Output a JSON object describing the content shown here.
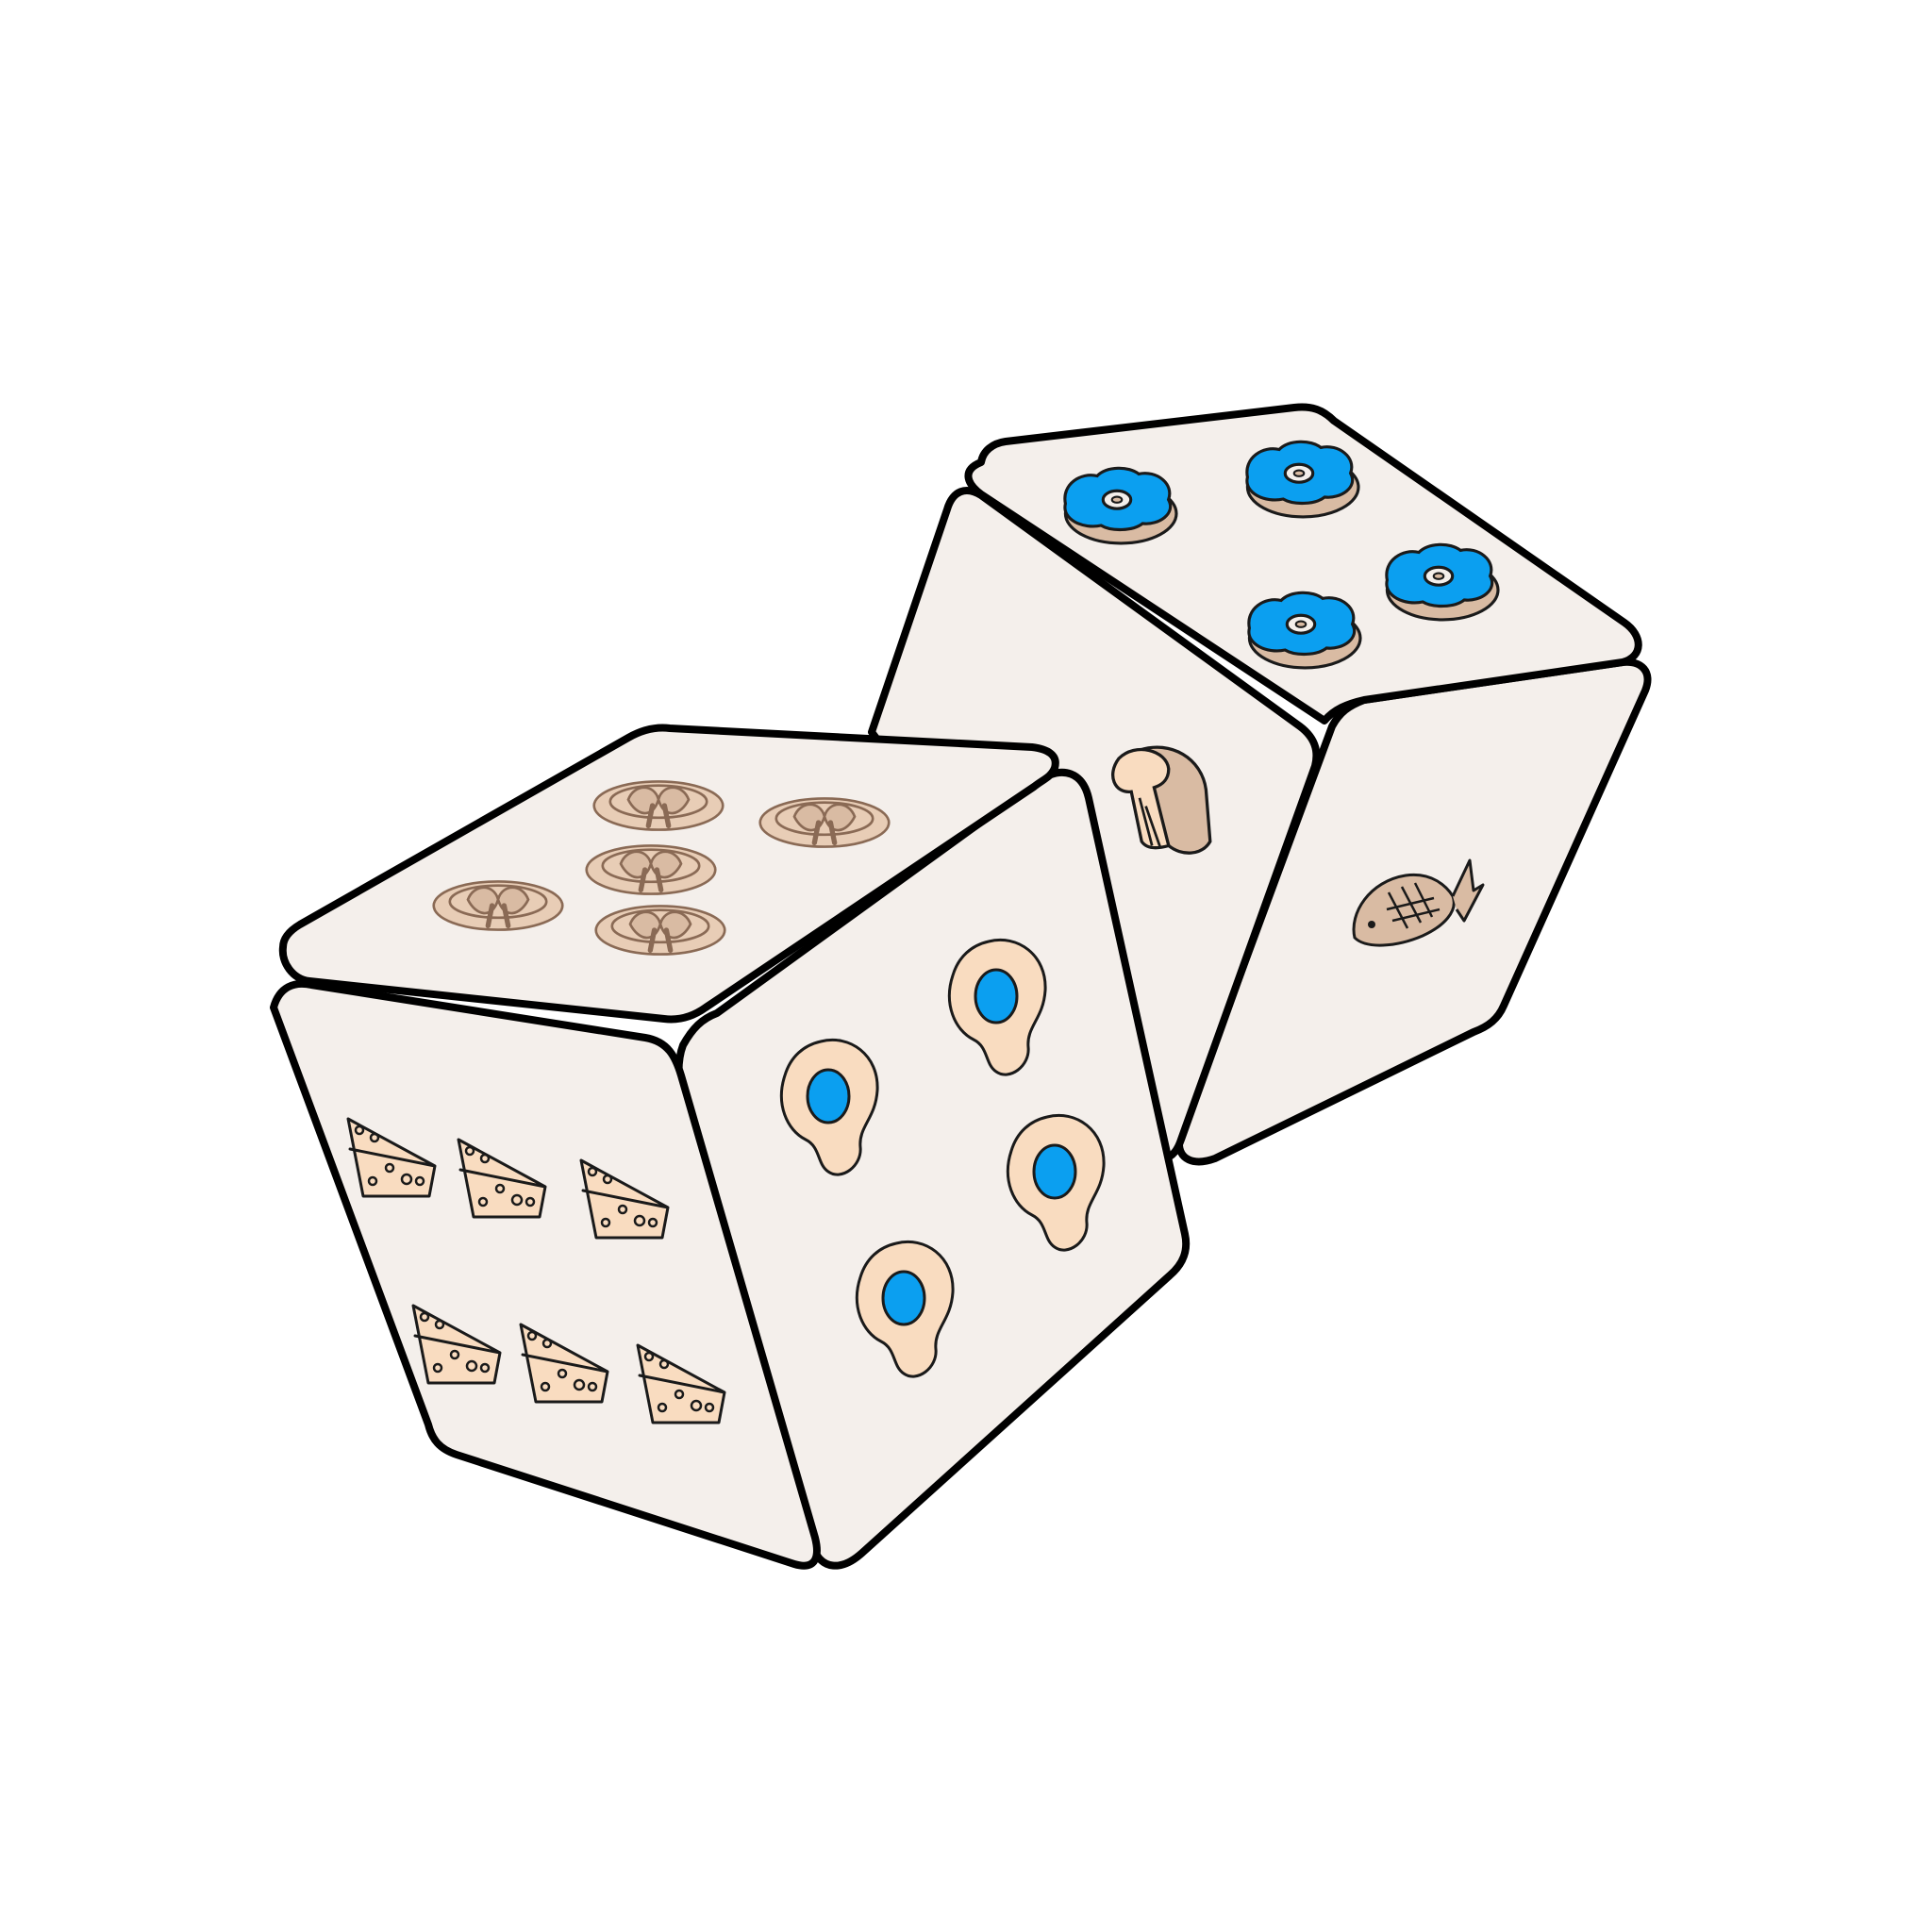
{
  "scene": {
    "background": "#ffffff",
    "colors": {
      "die_face": "#f4efeb",
      "outline": "#000000",
      "food_tan": "#f9dcc0",
      "food_brown": "#d9bba3",
      "accent_blue": "#0b9ff0"
    }
  },
  "dice": [
    {
      "name": "front-die",
      "faces": [
        {
          "side": "top",
          "pips": 5,
          "icon": "pretzel-icon"
        },
        {
          "side": "left",
          "pips": 6,
          "icon": "cheese-icon"
        },
        {
          "side": "right",
          "pips": 4,
          "icon": "fried-egg-icon"
        }
      ]
    },
    {
      "name": "back-die",
      "faces": [
        {
          "side": "top",
          "pips": 4,
          "icon": "donut-icon"
        },
        {
          "side": "left",
          "pips": 1,
          "icon": "bread-icon"
        },
        {
          "side": "right",
          "pips": 1,
          "icon": "fish-icon"
        }
      ]
    }
  ]
}
